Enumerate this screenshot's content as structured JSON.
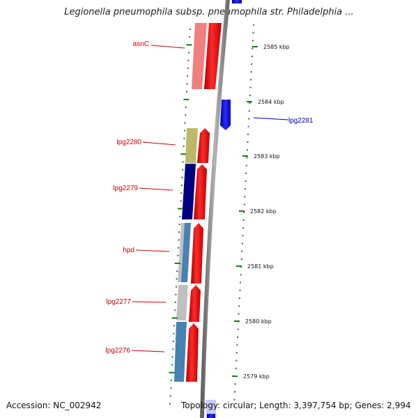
{
  "header": {
    "title": "Legionella pneumophila subsp. pneumophila str. Philadelphia ..."
  },
  "footer": {
    "accession": "Accession: NC_002942",
    "topology": "Topology: circular; Length: 3,397,754 bp; Genes: 2,994"
  },
  "colors": {
    "backbone": "#8a8a8a",
    "forward_cds": "#ee0000",
    "reverse_cds": "#0a0aee",
    "tick": "#1a7a1a",
    "feature_label": "#cc0000",
    "selected_label": "#0000bb"
  },
  "ruler": {
    "ticks": [
      {
        "label": "2585 kbp"
      },
      {
        "label": "2584 kbp"
      },
      {
        "label": "2583 kbp"
      },
      {
        "label": "2582 kbp"
      },
      {
        "label": "2581 kbp"
      },
      {
        "label": "2580 kbp"
      },
      {
        "label": "2579 kbp"
      }
    ]
  },
  "genes": [
    {
      "name": "asnC",
      "strand": "forward",
      "cog_color": "#f08080"
    },
    {
      "name": "lpg2281",
      "strand": "reverse",
      "cog_color": null
    },
    {
      "name": "lpg2280",
      "strand": "forward",
      "cog_color": "#bdb76b"
    },
    {
      "name": "lpg2279",
      "strand": "forward",
      "cog_color": "#000080"
    },
    {
      "name": "hpd",
      "strand": "forward",
      "cog_color": "#4682b4"
    },
    {
      "name": "lpg2277",
      "strand": "forward",
      "cog_color": "#c0c0c0"
    },
    {
      "name": "lpg2276",
      "strand": "forward",
      "cog_color": "#4682b4"
    }
  ]
}
